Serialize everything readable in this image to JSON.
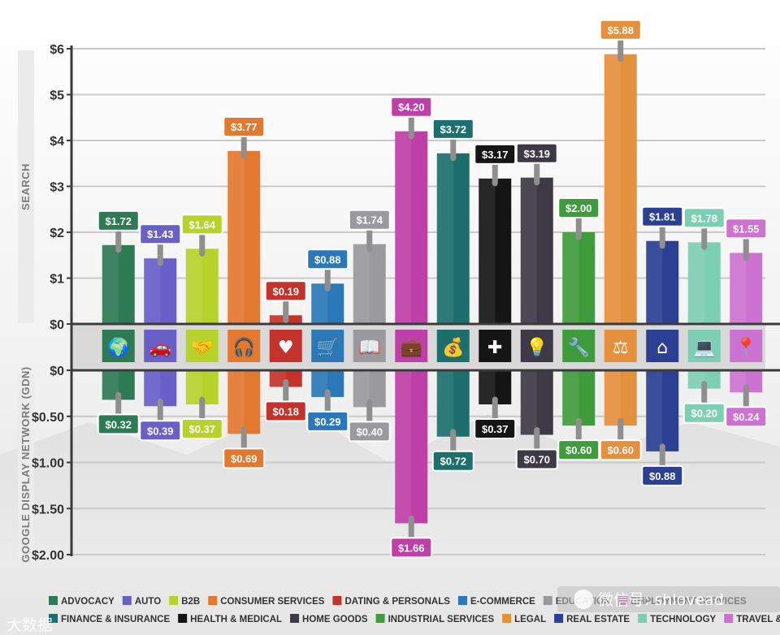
{
  "chart_data": {
    "type": "bar",
    "top_axis_label": "SEARCH",
    "bottom_axis_label": "GOOGLE DISPLAY NETWORK (GDN)",
    "top_ticks": [
      "$6",
      "$5",
      "$4",
      "$3",
      "$2",
      "$1",
      "$0"
    ],
    "bottom_ticks": [
      "$0",
      "$0.50",
      "$1.00",
      "$1.50",
      "$2.00"
    ],
    "top_range": [
      0,
      6
    ],
    "bottom_range": [
      0,
      2
    ],
    "grid": true,
    "legend_position": "bottom",
    "categories": [
      {
        "name": "ADVOCACY",
        "color": "#2e7a55",
        "search": 1.72,
        "search_label": "$1.72",
        "gdn": 0.32,
        "gdn_label": "$0.32",
        "icon": "globe-hands-icon",
        "glyph": "🌍"
      },
      {
        "name": "AUTO",
        "color": "#6a5ec9",
        "search": 1.43,
        "search_label": "$1.43",
        "gdn": 0.39,
        "gdn_label": "$0.39",
        "icon": "car-icon",
        "glyph": "🚗"
      },
      {
        "name": "B2B",
        "color": "#b6d22b",
        "search": 1.64,
        "search_label": "$1.64",
        "gdn": 0.37,
        "gdn_label": "$0.37",
        "icon": "handshake-icon",
        "glyph": "🤝"
      },
      {
        "name": "CONSUMER SERVICES",
        "color": "#e3782f",
        "search": 3.77,
        "search_label": "$3.77",
        "gdn": 0.69,
        "gdn_label": "$0.69",
        "icon": "headset-icon",
        "glyph": "🎧"
      },
      {
        "name": "DATING & PERSONALS",
        "color": "#c4332b",
        "search": 0.19,
        "search_label": "$0.19",
        "gdn": 0.18,
        "gdn_label": "$0.18",
        "icon": "heart-icon",
        "glyph": "♥"
      },
      {
        "name": "E-COMMERCE",
        "color": "#2a78b7",
        "search": 0.88,
        "search_label": "$0.88",
        "gdn": 0.29,
        "gdn_label": "$0.29",
        "icon": "shopping-cart-icon",
        "glyph": "🛒"
      },
      {
        "name": "EDUCATION",
        "color": "#9a9a9e",
        "search": 1.74,
        "search_label": "$1.74",
        "gdn": 0.4,
        "gdn_label": "$0.40",
        "icon": "book-icon",
        "glyph": "📖"
      },
      {
        "name": "EMPLOYMENT SERVICES",
        "color": "#bf3fa8",
        "search": 4.2,
        "search_label": "$4.20",
        "gdn": 1.66,
        "gdn_label": "$1.66",
        "icon": "briefcase-icon",
        "glyph": "💼"
      },
      {
        "name": "FINANCE & INSURANCE",
        "color": "#1d6f6d",
        "search": 3.72,
        "search_label": "$3.72",
        "gdn": 0.72,
        "gdn_label": "$0.72",
        "icon": "money-bag-icon",
        "glyph": "💰"
      },
      {
        "name": "HEALTH & MEDICAL",
        "color": "#151515",
        "search": 3.17,
        "search_label": "$3.17",
        "gdn": 0.37,
        "gdn_label": "$0.37",
        "icon": "first-aid-icon",
        "glyph": "✚"
      },
      {
        "name": "HOME GOODS",
        "color": "#3d3946",
        "search": 3.19,
        "search_label": "$3.19",
        "gdn": 0.7,
        "gdn_label": "$0.70",
        "icon": "lamp-icon",
        "glyph": "💡"
      },
      {
        "name": "INDUSTRIAL SERVICES",
        "color": "#3f9c3c",
        "search": 2.0,
        "search_label": "$2.00",
        "gdn": 0.6,
        "gdn_label": "$0.60",
        "icon": "tools-icon",
        "glyph": "🔧"
      },
      {
        "name": "LEGAL",
        "color": "#e5903d",
        "search": 5.88,
        "search_label": "$5.88",
        "gdn": 0.6,
        "gdn_label": "$0.60",
        "icon": "gavel-icon",
        "glyph": "⚖"
      },
      {
        "name": "REAL ESTATE",
        "color": "#2b3f93",
        "search": 1.81,
        "search_label": "$1.81",
        "gdn": 0.88,
        "gdn_label": "$0.88",
        "icon": "house-icon",
        "glyph": "⌂"
      },
      {
        "name": "TECHNOLOGY",
        "color": "#7dcfb4",
        "search": 1.78,
        "search_label": "$1.78",
        "gdn": 0.2,
        "gdn_label": "$0.20",
        "icon": "laptop-icon",
        "glyph": "💻"
      },
      {
        "name": "TRAVEL & HOSPITALITY",
        "color": "#cc72d0",
        "search": 1.55,
        "search_label": "$1.55",
        "gdn": 0.24,
        "gdn_label": "$0.24",
        "icon": "map-pin-icon",
        "glyph": "📍"
      }
    ],
    "legend_row_1": [
      "ADVOCACY",
      "AUTO",
      "B2B",
      "CONSUMER SERVICES",
      "DATING & PERSONALS",
      "E-COMMERCE",
      "EDUCATION",
      "EMPLOYMENT SERVICES"
    ],
    "legend_row_2": [
      "FINANCE & INSURANCE",
      "HEALTH & MEDICAL",
      "HOME GOODS",
      "INDUSTRIAL SERVICES",
      "LEGAL",
      "REAL ESTATE",
      "TECHNOLOGY",
      "TRAVEL & HOSPITALITY"
    ]
  },
  "watermark": {
    "text": "微信号: shlovead",
    "corner_text": "大数据"
  },
  "colors": {
    "axis": "#3a3a3a",
    "grid": "#c9c9c9",
    "tag_stem": "#8f8f8f",
    "tick": "#333333"
  }
}
